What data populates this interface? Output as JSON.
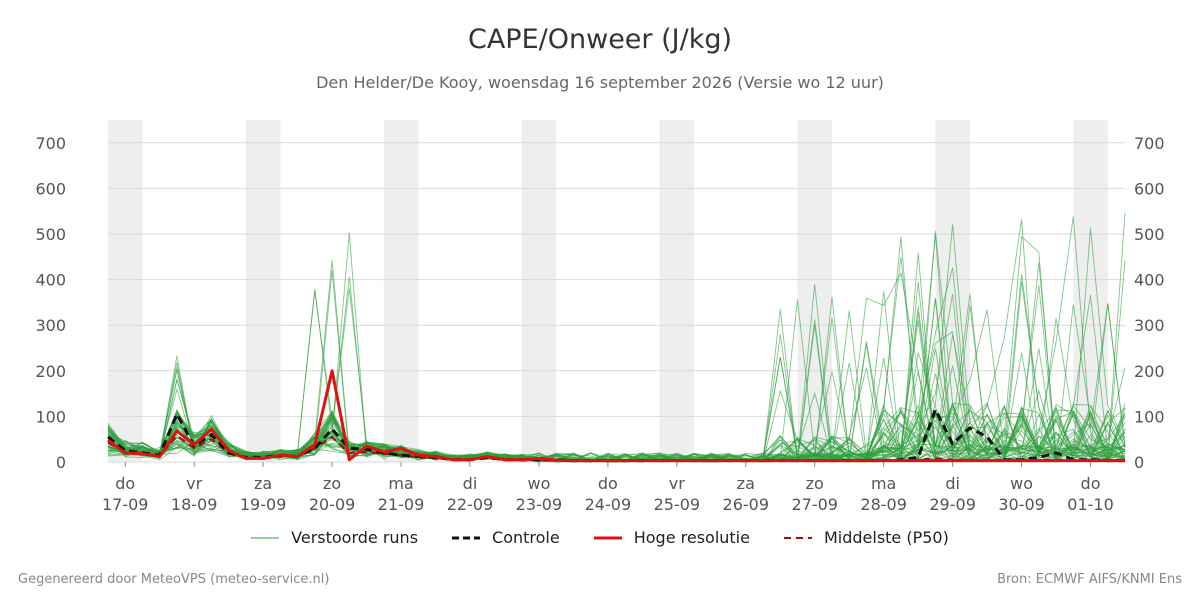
{
  "header": {
    "title": "CAPE/Onweer (J/kg)",
    "subtitle": "Den Helder/De Kooy, woensdag 16 september 2026 (Versie wo 12 uur)"
  },
  "footer": {
    "left": "Gegenereerd door MeteoVPS (meteo-service.nl)",
    "right": "Bron: ECMWF AIFS/KNMI Ens"
  },
  "colors": {
    "ensemble": "#2e9e3e",
    "control": "#111111",
    "high_res": "#e0120d",
    "median": "#9b0f0f",
    "shade": "#eeeeee",
    "grid": "#d9d9d9"
  },
  "chart_data": {
    "type": "line",
    "title": "CAPE/Onweer (J/kg)",
    "xlabel": "",
    "ylabel": "",
    "ylim": [
      0,
      750
    ],
    "yticks": [
      0,
      100,
      200,
      300,
      400,
      500,
      600,
      700
    ],
    "grid": true,
    "legend_position": "bottom",
    "x_days": [
      {
        "day": 0,
        "dow": "do",
        "date": "17-09"
      },
      {
        "day": 1,
        "dow": "vr",
        "date": "18-09"
      },
      {
        "day": 2,
        "dow": "za",
        "date": "19-09"
      },
      {
        "day": 3,
        "dow": "zo",
        "date": "20-09"
      },
      {
        "day": 4,
        "dow": "ma",
        "date": "21-09"
      },
      {
        "day": 5,
        "dow": "di",
        "date": "22-09"
      },
      {
        "day": 6,
        "dow": "wo",
        "date": "23-09"
      },
      {
        "day": 7,
        "dow": "do",
        "date": "24-09"
      },
      {
        "day": 8,
        "dow": "vr",
        "date": "25-09"
      },
      {
        "day": 9,
        "dow": "za",
        "date": "26-09"
      },
      {
        "day": 10,
        "dow": "zo",
        "date": "27-09"
      },
      {
        "day": 11,
        "dow": "ma",
        "date": "28-09"
      },
      {
        "day": 12,
        "dow": "di",
        "date": "29-09"
      },
      {
        "day": 13,
        "dow": "wo",
        "date": "30-09"
      },
      {
        "day": 14,
        "dow": "do",
        "date": "01-10"
      }
    ],
    "x_range": [
      -0.25,
      14.5
    ],
    "shaded_day_bands": [
      [
        -0.25,
        0.25
      ],
      [
        1.75,
        2.25
      ],
      [
        3.75,
        4.25
      ],
      [
        5.75,
        6.25
      ],
      [
        7.75,
        8.25
      ],
      [
        9.75,
        10.25
      ],
      [
        11.75,
        12.25
      ],
      [
        13.75,
        14.25
      ]
    ],
    "legend": [
      {
        "key": "ensemble",
        "label": "Verstoorde runs"
      },
      {
        "key": "control",
        "label": "Controle"
      },
      {
        "key": "high_res",
        "label": "Hoge resolutie"
      },
      {
        "key": "median",
        "label": "Middelste (P50)"
      }
    ],
    "high_res": {
      "x": [
        -0.25,
        0,
        0.25,
        0.5,
        0.75,
        1,
        1.25,
        1.5,
        1.75,
        2,
        2.25,
        2.5,
        2.75,
        3,
        3.25,
        3.5,
        3.75,
        4,
        4.25,
        4.5,
        4.75,
        5,
        5.25,
        5.5,
        5.75,
        6,
        6.25,
        6.5,
        6.75,
        7,
        7.25,
        7.5,
        7.75,
        8,
        8.25,
        8.5,
        8.75,
        9,
        9.25,
        9.5,
        9.75,
        10,
        10.25,
        10.5,
        10.75,
        11,
        11.25,
        11.5,
        11.75,
        12,
        12.25,
        12.5,
        12.75,
        13,
        13.25,
        13.5,
        13.75,
        14,
        14.25,
        14.5
      ],
      "y": [
        48,
        20,
        18,
        12,
        68,
        38,
        72,
        25,
        8,
        8,
        15,
        12,
        38,
        200,
        5,
        35,
        22,
        30,
        15,
        12,
        5,
        5,
        12,
        5,
        5,
        8,
        4,
        3,
        3,
        3,
        3,
        3,
        3,
        3,
        3,
        3,
        3,
        3,
        3,
        3,
        3,
        3,
        3,
        3,
        3,
        3,
        3,
        3,
        3,
        3,
        3,
        3,
        3,
        3,
        3,
        3,
        3,
        3,
        3,
        3
      ]
    },
    "control": {
      "x": [
        -0.25,
        0,
        0.25,
        0.5,
        0.75,
        1,
        1.25,
        1.5,
        1.75,
        2,
        2.25,
        2.5,
        2.75,
        3,
        3.25,
        3.5,
        3.75,
        4,
        4.25,
        4.5,
        4.75,
        5,
        5.25,
        5.5,
        5.75,
        6,
        6.25,
        6.5,
        6.75,
        7,
        7.25,
        7.5,
        7.75,
        8,
        8.25,
        8.5,
        8.75,
        9,
        9.25,
        9.5,
        9.75,
        10,
        10.25,
        10.5,
        10.75,
        11,
        11.25,
        11.5,
        11.75,
        12,
        12.25,
        12.5,
        12.75,
        13,
        13.25,
        13.5,
        13.75,
        14,
        14.25,
        14.5
      ],
      "y": [
        55,
        25,
        20,
        15,
        105,
        35,
        60,
        20,
        10,
        10,
        15,
        12,
        30,
        72,
        30,
        28,
        20,
        15,
        12,
        10,
        5,
        5,
        10,
        5,
        5,
        5,
        5,
        3,
        3,
        3,
        3,
        3,
        3,
        3,
        3,
        3,
        3,
        3,
        3,
        3,
        3,
        3,
        3,
        3,
        3,
        3,
        5,
        10,
        115,
        40,
        75,
        55,
        5,
        5,
        10,
        20,
        5,
        5,
        3,
        3
      ]
    },
    "median": {
      "x": [
        -0.25,
        0,
        0.25,
        0.5,
        0.75,
        1,
        1.25,
        1.5,
        1.75,
        2,
        2.25,
        2.5,
        2.75,
        3,
        3.25,
        3.5,
        3.75,
        4,
        4.25,
        4.5,
        4.75,
        5,
        5.25,
        5.5,
        5.75,
        6,
        6.25,
        6.5,
        6.75,
        7,
        7.25,
        7.5,
        7.75,
        8,
        8.25,
        8.5,
        8.75,
        9,
        9.25,
        9.5,
        9.75,
        10,
        10.25,
        10.5,
        10.75,
        11,
        11.25,
        11.5,
        11.75,
        12,
        12.25,
        12.5,
        12.75,
        13,
        13.25,
        13.5,
        13.75,
        14,
        14.25,
        14.5
      ],
      "y": [
        42,
        22,
        18,
        12,
        58,
        30,
        50,
        20,
        8,
        8,
        12,
        12,
        30,
        55,
        20,
        22,
        18,
        15,
        10,
        8,
        5,
        5,
        8,
        5,
        5,
        5,
        4,
        3,
        3,
        3,
        3,
        3,
        3,
        3,
        3,
        3,
        3,
        3,
        3,
        3,
        3,
        3,
        3,
        3,
        3,
        3,
        3,
        5,
        8,
        5,
        5,
        5,
        5,
        5,
        5,
        5,
        5,
        5,
        5,
        5
      ]
    },
    "ensemble_member_count": 50
  }
}
